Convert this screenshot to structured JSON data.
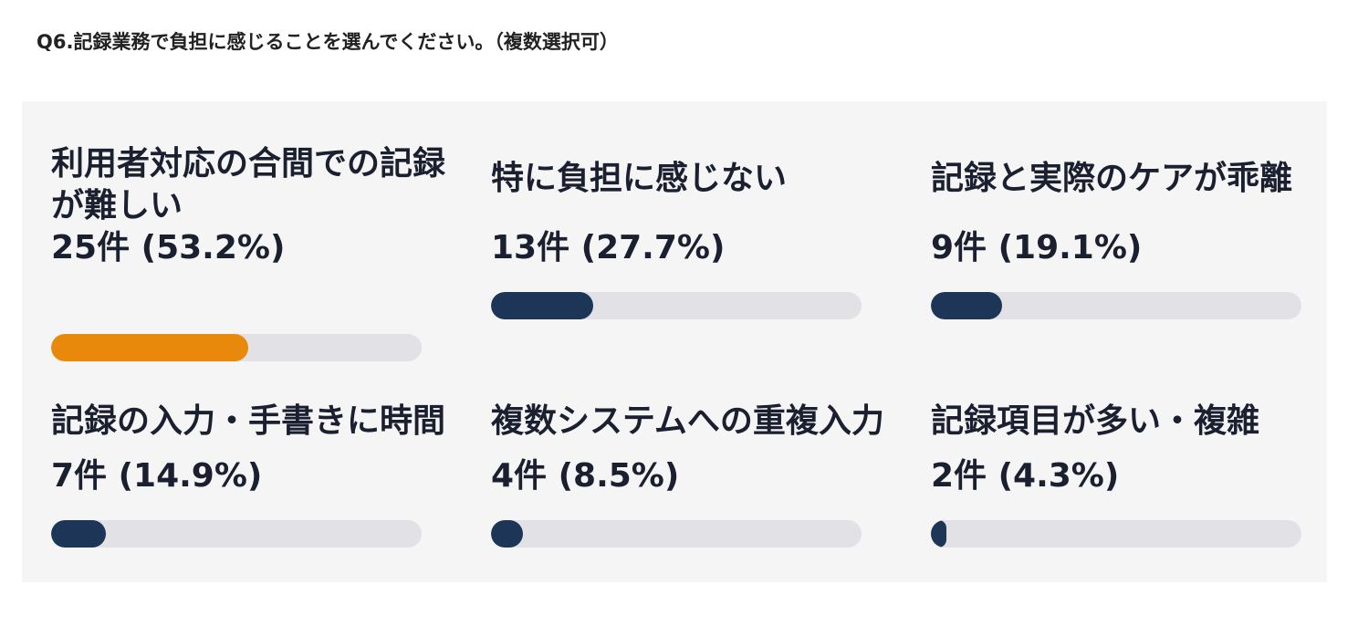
{
  "question": "Q6.記録業務で負担に感じることを選んでください。（複数選択可）",
  "colors": {
    "accent": "#e8890c",
    "bar": "#1d3557",
    "track": "#e1e1e6",
    "panel": "#f5f5f6"
  },
  "chart_data": {
    "type": "bar",
    "categories": [
      "利用者対応の合間での記録が難しい",
      "特に負担に感じない",
      "記録と実際のケアが乖離",
      "記録の入力・手書きに時間",
      "複数システムへの重複入力",
      "記録項目が多い・複雑"
    ],
    "counts": [
      25,
      13,
      9,
      7,
      4,
      2
    ],
    "percents": [
      53.2,
      27.7,
      19.1,
      14.9,
      8.5,
      4.3
    ],
    "value_labels": [
      "25件 (53.2%)",
      "13件 (27.7%)",
      "9件 (19.1%)",
      "7件 (14.9%)",
      "4件 (8.5%)",
      "2件 (4.3%)"
    ],
    "xlim": [
      0,
      100
    ],
    "highlight_index": 0
  }
}
